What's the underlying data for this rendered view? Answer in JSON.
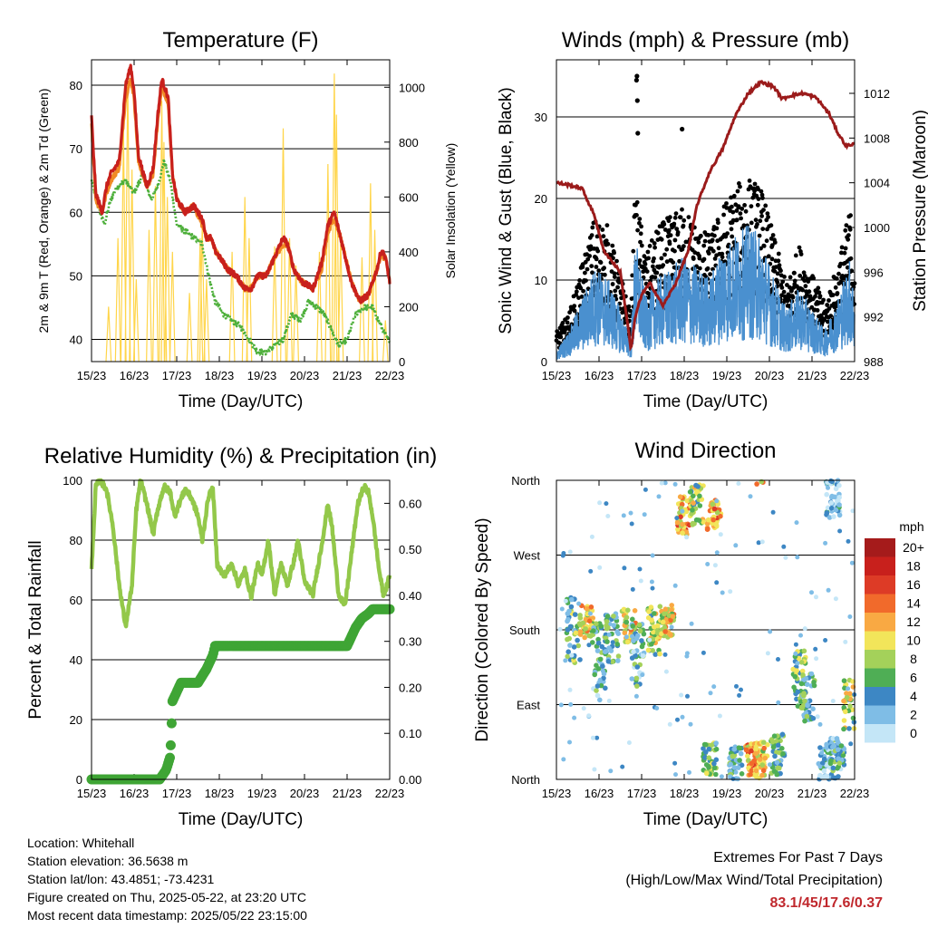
{
  "chart_data": [
    {
      "type": "line",
      "title": "Temperature (F)",
      "xlabel": "Time (Day/UTC)",
      "ylabel": "2m & 9m T (Red, Orange) & 2m Td (Green)",
      "ylabel_right": "Solar Insolation (Yellow)",
      "x_ticks": [
        "15/23",
        "16/23",
        "17/23",
        "18/23",
        "19/23",
        "20/23",
        "21/23",
        "22/23"
      ],
      "ylim": [
        36.5,
        84
      ],
      "y_ticks": [
        40,
        50,
        60,
        70,
        80
      ],
      "ylim_right": [
        0,
        1100
      ],
      "y_ticks_right": [
        0,
        200,
        400,
        600,
        800,
        1000
      ],
      "grid": "horizontal",
      "colors": {
        "t2m": "#c8201c",
        "t9m": "#f08a24",
        "td": "#4daf3a",
        "solar": "#ffd54a"
      },
      "series": [
        {
          "name": "2m T (Red)",
          "x": [
            0,
            0.1,
            0.25,
            0.35,
            0.45,
            0.65,
            0.8,
            0.92,
            1.0,
            1.1,
            1.3,
            1.45,
            1.55,
            1.65,
            1.8,
            1.9,
            2.0,
            2.2,
            2.4,
            2.6,
            2.7,
            2.8,
            2.9,
            3.0,
            3.2,
            3.4,
            3.6,
            3.75,
            3.9,
            4.1,
            4.3,
            4.5,
            4.6,
            4.75,
            4.95,
            5.2,
            5.4,
            5.55,
            5.7,
            5.85,
            6.1,
            6.3,
            6.5,
            6.7,
            6.8,
            6.9,
            7.0
          ],
          "y": [
            75,
            63,
            60,
            64,
            66,
            68,
            80,
            83,
            79,
            69,
            64,
            67,
            75,
            81,
            78,
            66,
            62,
            60,
            61,
            59,
            56,
            56,
            54,
            53,
            51,
            50,
            48,
            48,
            50,
            50,
            53,
            56,
            55,
            51,
            49,
            48,
            52,
            58,
            60,
            56,
            49,
            46,
            47,
            51,
            54,
            53,
            49
          ]
        },
        {
          "name": "9m T (Orange)",
          "x": [
            0,
            0.1,
            0.25,
            0.35,
            0.45,
            0.65,
            0.8,
            0.92,
            1.0,
            1.1,
            1.3,
            1.45,
            1.55,
            1.65,
            1.8,
            1.9,
            2.0,
            2.2,
            2.4,
            2.6,
            2.7,
            2.8,
            2.9,
            3.0,
            3.2,
            3.4,
            3.6,
            3.75,
            3.9,
            4.1,
            4.3,
            4.5,
            4.6,
            4.75,
            4.95,
            5.2,
            5.4,
            5.55,
            5.7,
            5.85,
            6.1,
            6.3,
            6.5,
            6.7,
            6.8,
            6.9,
            7.0
          ],
          "y": [
            74,
            62,
            60,
            63,
            65,
            67,
            78,
            81,
            78,
            68,
            64,
            66,
            74,
            80,
            77,
            66,
            62,
            60,
            61,
            58,
            56,
            56,
            54,
            53,
            51,
            50,
            48,
            48,
            50,
            50,
            53,
            55,
            55,
            51,
            49,
            48,
            51,
            57,
            59,
            56,
            49,
            46,
            47,
            51,
            53,
            53,
            49
          ]
        },
        {
          "name": "2m Td (Green)",
          "x": [
            0,
            0.15,
            0.3,
            0.45,
            0.6,
            0.8,
            1.0,
            1.2,
            1.4,
            1.55,
            1.7,
            1.85,
            2.0,
            2.2,
            2.4,
            2.6,
            2.75,
            2.9,
            3.1,
            3.3,
            3.5,
            3.7,
            3.9,
            4.1,
            4.3,
            4.5,
            4.7,
            4.9,
            5.1,
            5.3,
            5.45,
            5.6,
            5.8,
            6.0,
            6.2,
            6.4,
            6.6,
            6.8,
            6.95
          ],
          "y": [
            65,
            61,
            58,
            62,
            64,
            65,
            63,
            66,
            62,
            64,
            68,
            65,
            58,
            57,
            56,
            55,
            50,
            46,
            44,
            43,
            42,
            40,
            38,
            38,
            39,
            40,
            44,
            43,
            46,
            45,
            44,
            42,
            39,
            40,
            44,
            45,
            45,
            42,
            40
          ]
        },
        {
          "name": "Solar Insolation (Yellow)",
          "axis": "right",
          "peaks": [
            [
              0.4,
              200
            ],
            [
              0.62,
              450
            ],
            [
              0.75,
              850
            ],
            [
              0.85,
              1050
            ],
            [
              0.95,
              700
            ],
            [
              1.05,
              300
            ],
            [
              1.35,
              480
            ],
            [
              1.5,
              640
            ],
            [
              1.65,
              950
            ],
            [
              1.7,
              800
            ],
            [
              1.78,
              600
            ],
            [
              1.9,
              400
            ],
            [
              2.3,
              250
            ],
            [
              2.55,
              450
            ],
            [
              2.6,
              500
            ],
            [
              2.7,
              300
            ],
            [
              3.3,
              400
            ],
            [
              3.6,
              600
            ],
            [
              3.7,
              450
            ],
            [
              4.3,
              420
            ],
            [
              4.5,
              850
            ],
            [
              4.65,
              450
            ],
            [
              4.8,
              350
            ],
            [
              5.35,
              400
            ],
            [
              5.55,
              720
            ],
            [
              5.7,
              1050
            ],
            [
              5.75,
              900
            ],
            [
              5.85,
              450
            ],
            [
              6.35,
              380
            ],
            [
              6.55,
              650
            ],
            [
              6.65,
              480
            ],
            [
              6.9,
              150
            ]
          ]
        }
      ]
    },
    {
      "type": "scatter",
      "title": "Winds (mph) & Pressure (mb)",
      "xlabel": "Time (Day/UTC)",
      "ylabel": "Sonic Wind & Gust (Blue, Black)",
      "ylabel_right": "Station Pressure (Maroon)",
      "x_ticks": [
        "15/23",
        "16/23",
        "17/23",
        "18/23",
        "19/23",
        "20/23",
        "21/23",
        "22/23"
      ],
      "ylim": [
        0,
        37
      ],
      "y_ticks": [
        0,
        10,
        20,
        30
      ],
      "ylim_right": [
        988,
        1015
      ],
      "y_ticks_right": [
        988,
        992,
        996,
        1000,
        1004,
        1008,
        1012
      ],
      "grid": "horizontal",
      "colors": {
        "wind": "#4a90cf",
        "gust": "#000000",
        "pressure": "#9b1b1b"
      },
      "series": [
        {
          "name": "Sonic Wind (Blue)",
          "x": [
            0,
            0.3,
            0.6,
            0.9,
            1.2,
            1.5,
            1.75,
            1.85,
            2.1,
            2.4,
            2.7,
            3.0,
            3.3,
            3.6,
            3.9,
            4.2,
            4.5,
            4.8,
            5.1,
            5.4,
            5.7,
            6.0,
            6.3,
            6.6,
            6.9,
            7.0
          ],
          "y": [
            1,
            3,
            6,
            9,
            8,
            5,
            2,
            12,
            6,
            8,
            9,
            10,
            9,
            8,
            11,
            12,
            13,
            12,
            8,
            5,
            7,
            5,
            3,
            6,
            10,
            6
          ]
        },
        {
          "name": "Gust (Black)",
          "x": [
            0,
            0.3,
            0.6,
            0.9,
            1.2,
            1.5,
            1.75,
            1.85,
            2.1,
            2.4,
            2.7,
            3.0,
            3.3,
            3.6,
            3.9,
            4.2,
            4.5,
            4.8,
            5.1,
            5.4,
            5.7,
            6.0,
            6.3,
            6.6,
            6.9,
            7.0
          ],
          "y": [
            3,
            5,
            10,
            15,
            14,
            9,
            5,
            18,
            11,
            14,
            15,
            16,
            14,
            13,
            16,
            18,
            19,
            18,
            13,
            8,
            12,
            9,
            6,
            10,
            16,
            10
          ]
        },
        {
          "name": "Station Pressure (Maroon)",
          "axis": "right",
          "x": [
            0,
            0.3,
            0.6,
            0.9,
            1.1,
            1.3,
            1.5,
            1.65,
            1.75,
            1.85,
            2.0,
            2.2,
            2.5,
            2.8,
            3.1,
            3.3,
            3.6,
            3.9,
            4.2,
            4.5,
            4.8,
            5.1,
            5.3,
            5.5,
            5.8,
            6.1,
            6.4,
            6.6,
            6.8,
            7.0
          ],
          "y": [
            1004,
            1003.8,
            1003.5,
            1001,
            998,
            997,
            996,
            992,
            989,
            992,
            994,
            995,
            993,
            995,
            998,
            1002,
            1005,
            1007,
            1010,
            1012,
            1013,
            1012.6,
            1011.5,
            1011.8,
            1012,
            1011.6,
            1010.2,
            1008.5,
            1007.3,
            1007.5
          ]
        }
      ],
      "outliers": [
        [
          1.88,
          34.5
        ],
        [
          1.89,
          35
        ],
        [
          1.9,
          32
        ],
        [
          1.91,
          28
        ],
        [
          2.95,
          28.5
        ]
      ]
    },
    {
      "type": "line",
      "title": "Relative Humidity (%) & Precipitation (in)",
      "xlabel": "Time (Day/UTC)",
      "ylabel": "Percent & Total Rainfall",
      "x_ticks": [
        "15/23",
        "16/23",
        "17/23",
        "18/23",
        "19/23",
        "20/23",
        "21/23",
        "22/23"
      ],
      "ylim": [
        0,
        100
      ],
      "y_ticks": [
        0,
        20,
        40,
        60,
        80,
        100
      ],
      "ylim_right": [
        0,
        0.65
      ],
      "y_ticks_right": [
        "0.00",
        "0.10",
        "0.20",
        "0.30",
        "0.40",
        "0.50",
        "0.60"
      ],
      "grid": "horizontal",
      "colors": {
        "rh": "#93c84a",
        "precip": "#3fa535"
      },
      "series": [
        {
          "name": "Relative Humidity",
          "x": [
            0,
            0.1,
            0.2,
            0.35,
            0.5,
            0.65,
            0.8,
            0.95,
            1.05,
            1.15,
            1.3,
            1.45,
            1.55,
            1.7,
            1.85,
            1.95,
            2.05,
            2.2,
            2.35,
            2.5,
            2.6,
            2.75,
            2.85,
            2.95,
            3.1,
            3.3,
            3.45,
            3.6,
            3.75,
            3.9,
            4.0,
            4.15,
            4.3,
            4.45,
            4.6,
            4.75,
            4.85,
            5.0,
            5.2,
            5.4,
            5.55,
            5.65,
            5.8,
            5.95,
            6.1,
            6.25,
            6.4,
            6.5,
            6.6,
            6.75,
            6.85,
            6.95,
            7.0
          ],
          "y": [
            70,
            98,
            100,
            97,
            85,
            65,
            51,
            65,
            90,
            100,
            92,
            82,
            90,
            98,
            96,
            88,
            92,
            97,
            94,
            88,
            80,
            95,
            97,
            72,
            68,
            72,
            65,
            70,
            61,
            72,
            68,
            80,
            62,
            72,
            65,
            73,
            80,
            66,
            62,
            78,
            92,
            84,
            62,
            58,
            75,
            92,
            98,
            96,
            88,
            70,
            62,
            65,
            69
          ]
        },
        {
          "name": "Total Precipitation",
          "axis": "right",
          "x": [
            0,
            1.6,
            1.75,
            1.85,
            1.9,
            2.0,
            2.1,
            2.3,
            2.5,
            2.7,
            2.85,
            2.9,
            3.0,
            3.5,
            4.5,
            5.5,
            6.0,
            6.1,
            6.2,
            6.35,
            6.5,
            6.6,
            6.65,
            7.0
          ],
          "y": [
            0,
            0,
            0.02,
            0.05,
            0.17,
            0.19,
            0.21,
            0.21,
            0.21,
            0.24,
            0.27,
            0.29,
            0.29,
            0.29,
            0.29,
            0.29,
            0.29,
            0.31,
            0.33,
            0.35,
            0.36,
            0.37,
            0.37,
            0.37
          ]
        }
      ]
    },
    {
      "type": "scatter",
      "title": "Wind Direction",
      "xlabel": "Time (Day/UTC)",
      "ylabel": "Direction (Colored By Speed)",
      "x_ticks": [
        "15/23",
        "16/23",
        "17/23",
        "18/23",
        "19/23",
        "20/23",
        "21/23",
        "22/23"
      ],
      "ylim": [
        0,
        360
      ],
      "y_ticks": [
        "North",
        "East",
        "South",
        "West",
        "North"
      ],
      "grid": "horizontal",
      "legend": {
        "title": "mph",
        "position": "right",
        "levels": [
          "20+",
          "18",
          "16",
          "14",
          "12",
          "10",
          "8",
          "6",
          "4",
          "2",
          "0"
        ],
        "colors": [
          "#a51b1b",
          "#c8201c",
          "#dd3b26",
          "#f16a2b",
          "#f9a943",
          "#f2e55a",
          "#a4d15a",
          "#4fae55",
          "#3d87c4",
          "#7fbde6",
          "#c4e6f7"
        ]
      },
      "clusters": [
        {
          "x": 0.4,
          "dir": 180,
          "spread": 40,
          "speed": 6
        },
        {
          "x": 0.7,
          "dir": 190,
          "spread": 20,
          "speed": 10
        },
        {
          "x": 1.0,
          "dir": 140,
          "spread": 50,
          "speed": 4
        },
        {
          "x": 1.3,
          "dir": 170,
          "spread": 30,
          "speed": 5
        },
        {
          "x": 1.7,
          "dir": 185,
          "spread": 20,
          "speed": 10
        },
        {
          "x": 1.9,
          "dir": 150,
          "spread": 40,
          "speed": 4
        },
        {
          "x": 2.3,
          "dir": 180,
          "spread": 30,
          "speed": 8
        },
        {
          "x": 2.6,
          "dir": 190,
          "spread": 20,
          "speed": 10
        },
        {
          "x": 3.0,
          "dir": 320,
          "spread": 25,
          "speed": 12
        },
        {
          "x": 3.3,
          "dir": 330,
          "spread": 25,
          "speed": 8
        },
        {
          "x": 3.7,
          "dir": 320,
          "spread": 20,
          "speed": 12
        },
        {
          "x": 3.6,
          "dir": 25,
          "spread": 20,
          "speed": 6
        },
        {
          "x": 4.2,
          "dir": 20,
          "spread": 20,
          "speed": 5
        },
        {
          "x": 4.6,
          "dir": 25,
          "spread": 20,
          "speed": 12
        },
        {
          "x": 4.8,
          "dir": 20,
          "spread": 25,
          "speed": 10
        },
        {
          "x": 5.2,
          "dir": 30,
          "spread": 25,
          "speed": 5
        },
        {
          "x": 5.7,
          "dir": 120,
          "spread": 35,
          "speed": 7
        },
        {
          "x": 5.9,
          "dir": 100,
          "spread": 30,
          "speed": 5
        },
        {
          "x": 6.3,
          "dir": 20,
          "spread": 25,
          "speed": 3
        },
        {
          "x": 6.6,
          "dir": 30,
          "spread": 20,
          "speed": 4
        },
        {
          "x": 6.9,
          "dir": 90,
          "spread": 30,
          "speed": 8
        },
        {
          "x": 6.5,
          "dir": 340,
          "spread": 25,
          "speed": 2
        }
      ]
    }
  ],
  "station": {
    "location": "Location: Whitehall",
    "elevation": "Station elevation: 36.5638 m",
    "latlon": "Station lat/lon: 43.4851; -73.4231",
    "created": "Figure created on Thu, 2025-05-22, at 23:20 UTC",
    "recent": "Most recent data timestamp: 2025/05/22 23:15:00"
  },
  "extremes": {
    "title": "Extremes For Past 7 Days",
    "subtitle": "(High/Low/Max Wind/Total Precipitation)",
    "values": "83.1/45/17.6/0.37"
  }
}
